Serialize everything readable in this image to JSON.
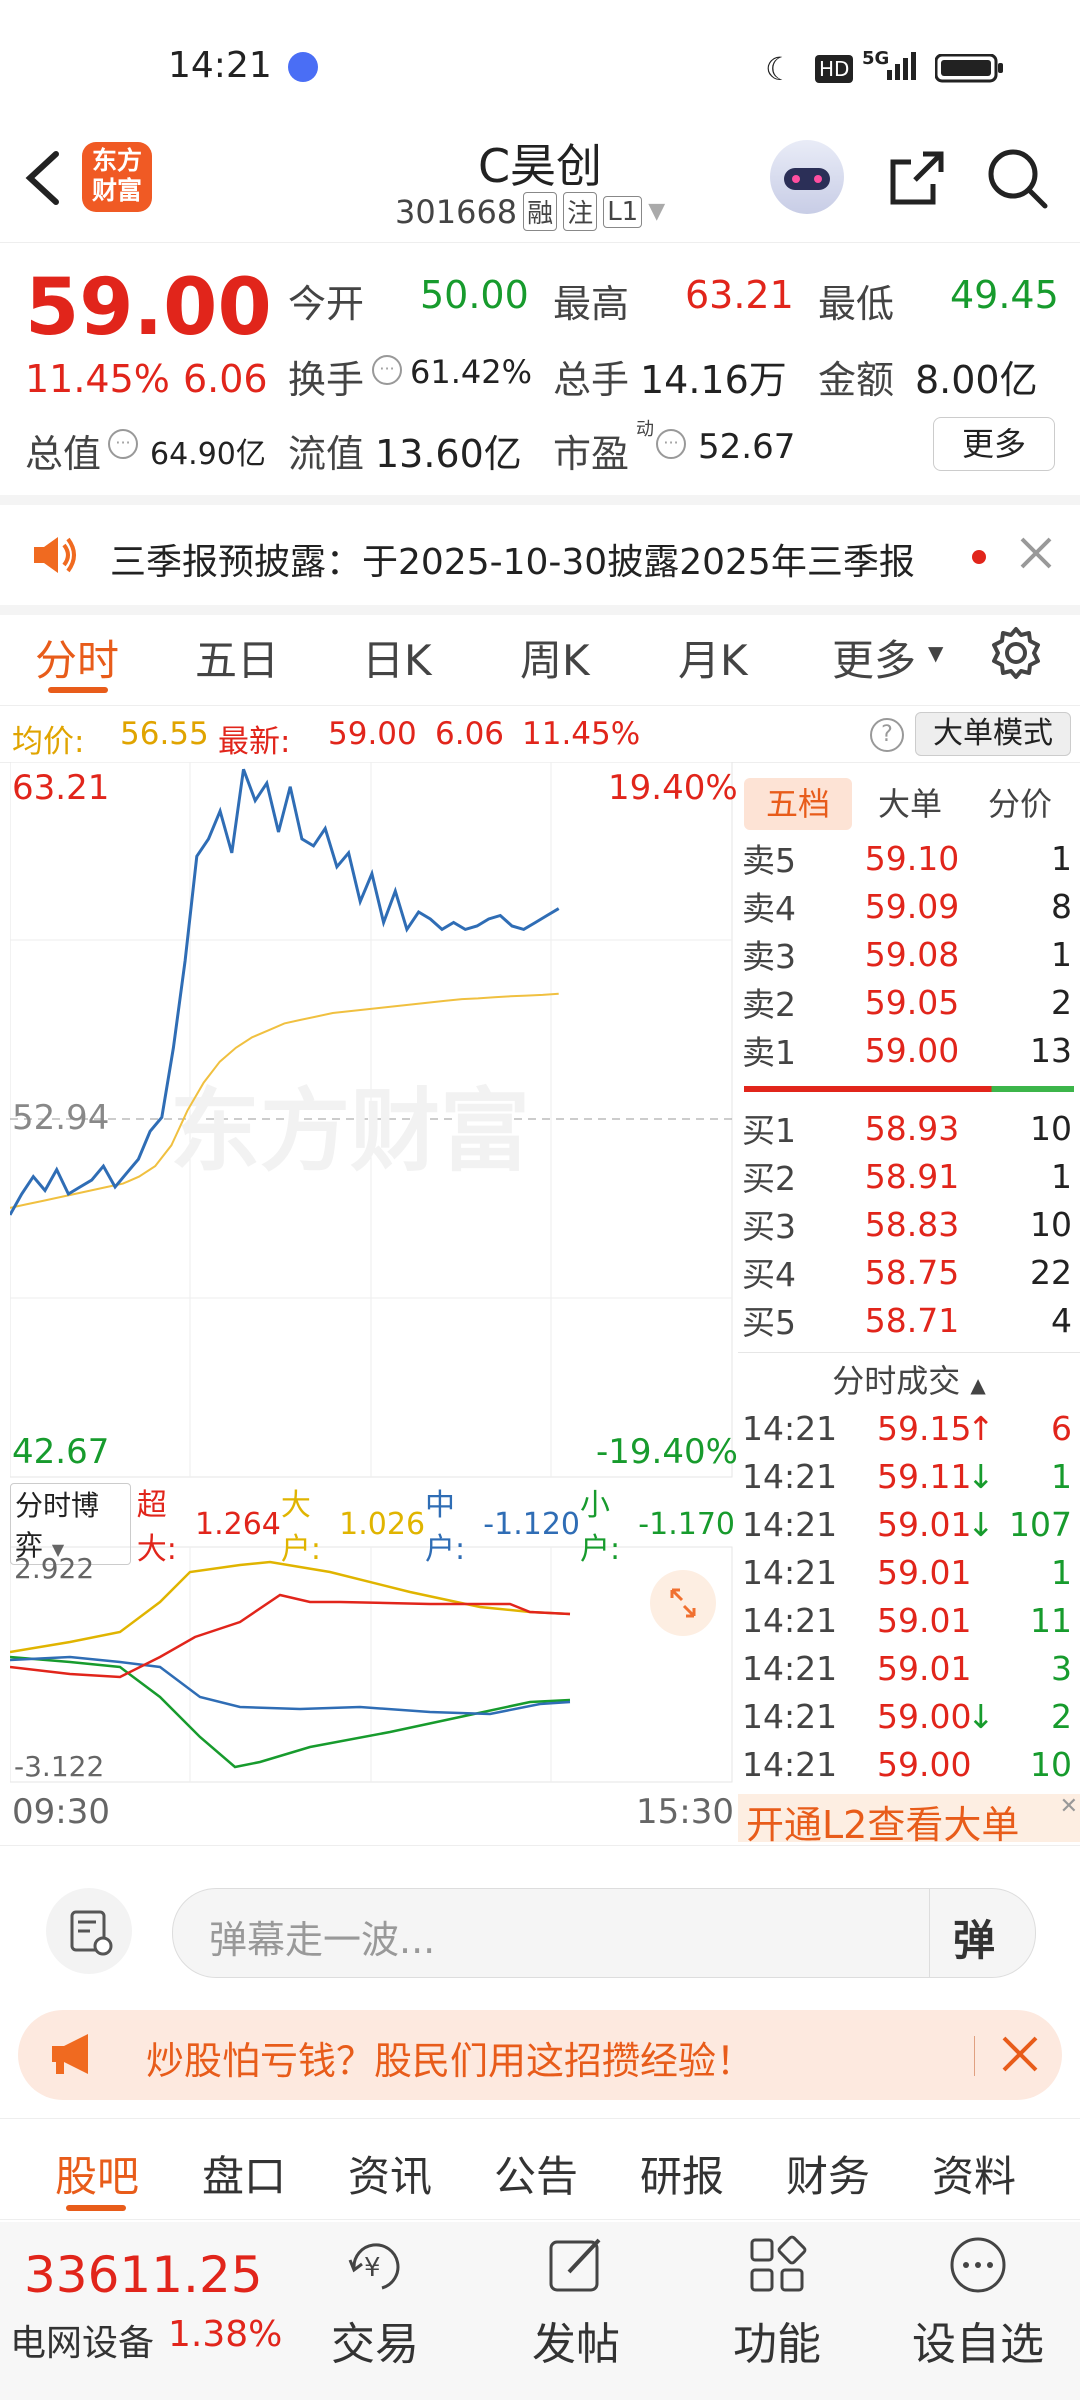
{
  "status": {
    "time": "14:21",
    "network": "5G",
    "hd": "HD"
  },
  "header": {
    "logo_text": [
      "东方",
      "财富"
    ],
    "title": "C昊创",
    "code": "301668",
    "tags": [
      "融",
      "注",
      "L1"
    ]
  },
  "quote": {
    "price": "59.00",
    "change_pct": "11.45%",
    "change": "6.06",
    "open_label": "今开",
    "open": "50.00",
    "high_label": "最高",
    "high": "63.21",
    "low_label": "最低",
    "low": "49.45",
    "turnover_label": "换手",
    "turnover": "61.42%",
    "volume_label": "总手",
    "volume": "14.16万",
    "amount_label": "金额",
    "amount": "8.00亿",
    "mcap_label": "总值",
    "mcap": "64.90亿",
    "float_label": "流值",
    "float": "13.60亿",
    "pe_label": "市盈",
    "pe_sup": "动",
    "pe": "52.67",
    "more": "更多"
  },
  "notice": {
    "text": "三季报预披露：于2025-10-30披露2025年三季报"
  },
  "tabs": [
    "分时",
    "五日",
    "日K",
    "周K",
    "月K",
    "更多"
  ],
  "infoline": {
    "avg_label": "均价:",
    "avg": "56.55",
    "last_label": "最新:",
    "last": "59.00",
    "chg": "6.06",
    "pct": "11.45%",
    "bigorder": "大单模式"
  },
  "chart": {
    "ymax": "63.21",
    "ymid": "52.94",
    "ymin": "42.67",
    "pmax": "19.40%",
    "pmin": "-19.40%",
    "watermark": "东方财富",
    "flow_selector": "分时博弈",
    "flow": [
      {
        "label": "超大:",
        "value": "1.264",
        "color": "#e1251b"
      },
      {
        "label": "大户:",
        "value": "1.026",
        "color": "#e0b400"
      },
      {
        "label": "中户:",
        "value": "-1.120",
        "color": "#2f6db5"
      },
      {
        "label": "小户:",
        "value": "-1.170",
        "color": "#179b2d"
      }
    ],
    "sub_max": "2.922",
    "sub_min": "-3.122",
    "t_start": "09:30",
    "t_end": "15:30"
  },
  "chart_data": {
    "type": "line",
    "ylim": [
      42.67,
      63.21
    ],
    "x_range": [
      "09:30",
      "15:30"
    ],
    "series": [
      {
        "values": [
          50.2,
          50.8,
          51.3,
          50.9,
          51.5,
          50.8,
          51.0,
          51.2,
          51.6,
          51.0,
          51.4,
          51.8,
          52.6,
          53.0,
          55.0,
          57.5,
          60.5,
          61.0,
          61.8,
          60.6,
          63.0,
          62.1,
          62.6,
          61.2,
          62.5,
          61.0,
          60.8,
          61.3,
          60.2,
          60.6,
          59.2,
          60.0,
          58.6,
          59.5,
          58.4,
          58.9,
          58.7,
          58.4,
          58.6,
          58.4,
          58.5,
          58.7,
          58.8,
          58.5,
          58.4,
          58.6,
          58.8,
          59.0
        ]
      },
      {
        "values": [
          50.4,
          50.5,
          50.6,
          50.7,
          50.8,
          50.9,
          51.0,
          51.1,
          51.3,
          51.6,
          52.2,
          53.2,
          54.0,
          54.6,
          55.0,
          55.3,
          55.5,
          55.7,
          55.8,
          55.9,
          56.0,
          56.05,
          56.1,
          56.15,
          56.2,
          56.25,
          56.3,
          56.35,
          56.4,
          56.42,
          56.45,
          56.48,
          56.5,
          56.52,
          56.55
        ]
      }
    ]
  },
  "book": {
    "tabs": [
      "五档",
      "大单",
      "分价"
    ],
    "asks": [
      {
        "label": "卖5",
        "price": "59.10",
        "vol": "1"
      },
      {
        "label": "卖4",
        "price": "59.09",
        "vol": "8"
      },
      {
        "label": "卖3",
        "price": "59.08",
        "vol": "1"
      },
      {
        "label": "卖2",
        "price": "59.05",
        "vol": "2"
      },
      {
        "label": "卖1",
        "price": "59.00",
        "vol": "13"
      }
    ],
    "bids": [
      {
        "label": "买1",
        "price": "58.93",
        "vol": "10"
      },
      {
        "label": "买2",
        "price": "58.91",
        "vol": "1"
      },
      {
        "label": "买3",
        "price": "58.83",
        "vol": "10"
      },
      {
        "label": "买4",
        "price": "58.75",
        "vol": "22"
      },
      {
        "label": "买5",
        "price": "58.71",
        "vol": "4"
      }
    ],
    "ticks_title": "分时成交",
    "ticks": [
      {
        "time": "14:21",
        "price": "59.15",
        "arrow": "↑",
        "vol": "6",
        "color": "#e1251b"
      },
      {
        "time": "14:21",
        "price": "59.11",
        "arrow": "↓",
        "vol": "1",
        "color": "#e1251b"
      },
      {
        "time": "14:21",
        "price": "59.01",
        "arrow": "↓",
        "vol": "107",
        "color": "#e1251b"
      },
      {
        "time": "14:21",
        "price": "59.01",
        "arrow": "",
        "vol": "1",
        "color": "#e1251b"
      },
      {
        "time": "14:21",
        "price": "59.01",
        "arrow": "",
        "vol": "11",
        "color": "#e1251b"
      },
      {
        "time": "14:21",
        "price": "59.01",
        "arrow": "",
        "vol": "3",
        "color": "#e1251b"
      },
      {
        "time": "14:21",
        "price": "59.00",
        "arrow": "↓",
        "vol": "2",
        "color": "#e1251b"
      },
      {
        "time": "14:21",
        "price": "59.00",
        "arrow": "",
        "vol": "10",
        "color": "#e1251b"
      }
    ],
    "l2_banner": "开通L2查看大单"
  },
  "comment": {
    "placeholder": "弹幕走一波...",
    "danmu": "弹"
  },
  "promo": {
    "text": "炒股怕亏钱？股民们用这招攒经验！"
  },
  "subtabs": [
    "股吧",
    "盘口",
    "资讯",
    "公告",
    "研报",
    "财务",
    "资料"
  ],
  "bottom": {
    "index_value": "33611.25",
    "index_name": "电网设备",
    "index_pct": "1.38%",
    "buttons": [
      "交易",
      "发帖",
      "功能",
      "设自选"
    ]
  }
}
